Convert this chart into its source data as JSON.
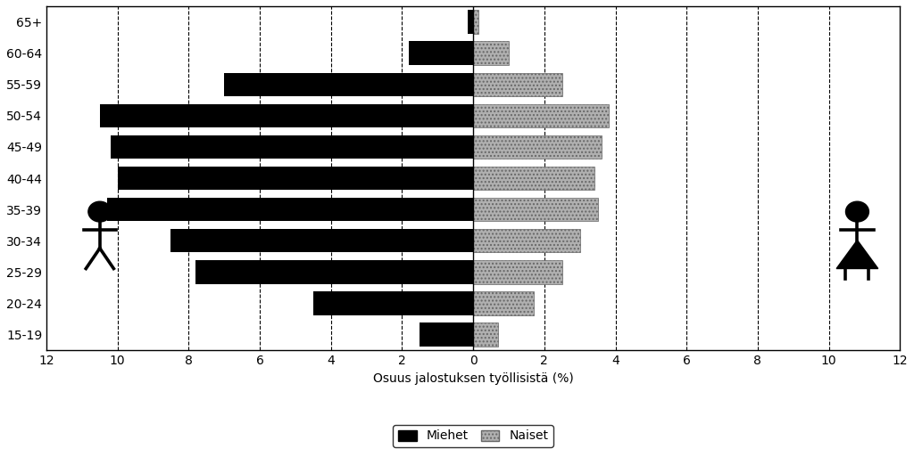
{
  "age_groups": [
    "65+",
    "60-64",
    "55-59",
    "50-54",
    "45-49",
    "40-44",
    "35-39",
    "30-34",
    "25-29",
    "20-24",
    "15-19"
  ],
  "men_values": [
    0.15,
    1.8,
    7.0,
    10.5,
    10.2,
    10.0,
    10.3,
    8.5,
    7.8,
    4.5,
    1.5
  ],
  "women_values": [
    0.15,
    1.0,
    2.5,
    3.8,
    3.6,
    3.4,
    3.5,
    3.0,
    2.5,
    1.7,
    0.7
  ],
  "xlim": 12,
  "xlabel": "Osuus jalostuksen työllisistä (%)",
  "legend_men": "Miehet",
  "legend_women": "Naiset",
  "men_color": "#000000",
  "women_color": "#b0b0b0",
  "women_hatch": "....",
  "bg_color": "#ffffff",
  "center_line_color": "#000000"
}
